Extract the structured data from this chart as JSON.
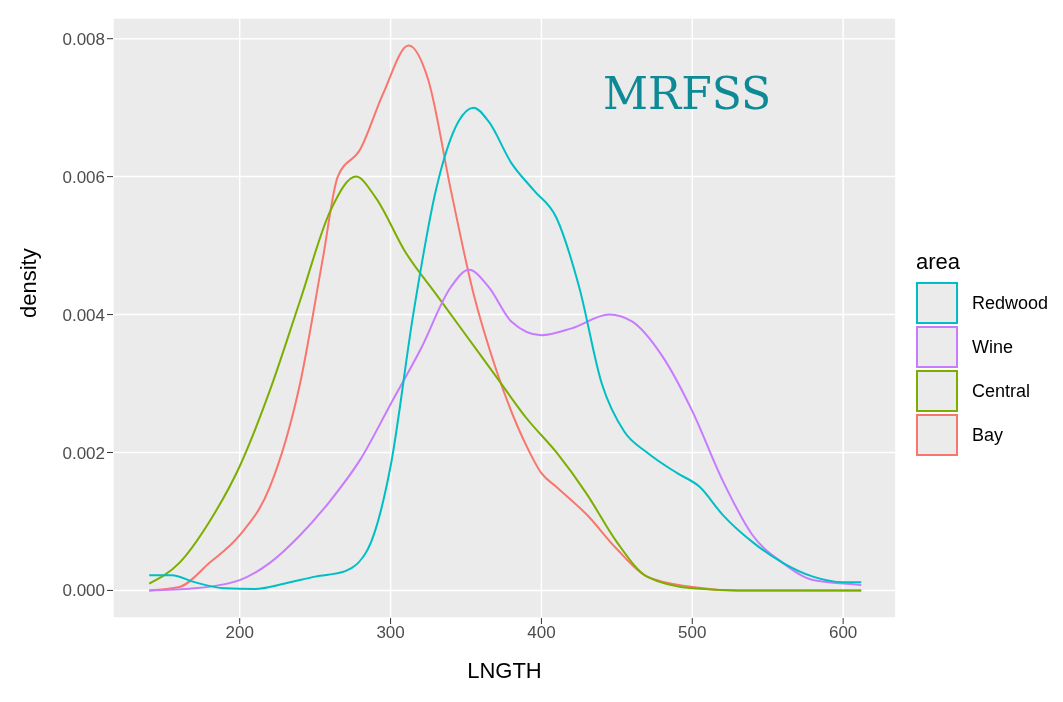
{
  "chart_data": {
    "type": "line",
    "xlabel": "LNGTH",
    "ylabel": "density",
    "legend_title": "area",
    "annotations": [
      "MRFSS"
    ],
    "xlim": [
      116,
      635
    ],
    "ylim": [
      -0.0004,
      0.0083
    ],
    "xticks": [
      200,
      300,
      400,
      500,
      600
    ],
    "yticks": [
      {
        "value": 0,
        "label": "0.000"
      },
      {
        "value": 0.002,
        "label": "0.002"
      },
      {
        "value": 0.004,
        "label": "0.004"
      },
      {
        "value": 0.006,
        "label": "0.006"
      },
      {
        "value": 0.008,
        "label": "0.008"
      }
    ],
    "grid": true,
    "legend": "right",
    "marker": "none",
    "line_style": "solid",
    "series": [
      {
        "name": "Redwood",
        "color": "#00bfc4",
        "x": [
          140,
          155,
          170,
          190,
          210,
          230,
          250,
          270,
          285,
          300,
          315,
          330,
          345,
          355,
          365,
          380,
          395,
          410,
          425,
          440,
          455,
          470,
          490,
          505,
          520,
          540,
          560,
          580,
          600,
          612
        ],
        "values": [
          0.00022,
          0.00022,
          0.00012,
          3e-05,
          2e-05,
          0.0001,
          0.0002,
          0.00028,
          0.0006,
          0.0018,
          0.004,
          0.0058,
          0.0068,
          0.007,
          0.0068,
          0.0062,
          0.0058,
          0.0054,
          0.0044,
          0.003,
          0.0023,
          0.002,
          0.0017,
          0.0015,
          0.0011,
          0.0007,
          0.0004,
          0.0002,
          0.00012,
          0.00012
        ]
      },
      {
        "name": "Wine",
        "color": "#c77cff",
        "x": [
          140,
          170,
          200,
          220,
          240,
          260,
          280,
          300,
          320,
          340,
          352,
          365,
          380,
          400,
          420,
          445,
          460,
          480,
          500,
          520,
          540,
          560,
          580,
          600,
          612
        ],
        "values": [
          0,
          3e-05,
          0.00015,
          0.0004,
          0.0008,
          0.0013,
          0.0019,
          0.0027,
          0.0035,
          0.0044,
          0.00465,
          0.0044,
          0.0039,
          0.0037,
          0.0038,
          0.004,
          0.0039,
          0.0034,
          0.0026,
          0.0016,
          0.0008,
          0.0004,
          0.00015,
          0.0001,
          8e-05
        ]
      },
      {
        "name": "Central",
        "color": "#7cae00",
        "x": [
          140,
          160,
          180,
          200,
          220,
          240,
          260,
          277,
          290,
          310,
          330,
          350,
          370,
          390,
          410,
          430,
          450,
          470,
          500,
          530,
          612
        ],
        "values": [
          0.0001,
          0.0004,
          0.001,
          0.0018,
          0.0029,
          0.0042,
          0.0055,
          0.006,
          0.0057,
          0.0049,
          0.0043,
          0.0037,
          0.0031,
          0.0025,
          0.002,
          0.0014,
          0.0007,
          0.0002,
          3e-05,
          0,
          0
        ]
      },
      {
        "name": "Bay",
        "color": "#f8766d",
        "x": [
          140,
          160,
          180,
          200,
          220,
          240,
          255,
          265,
          280,
          295,
          312,
          325,
          340,
          355,
          370,
          390,
          400,
          410,
          430,
          450,
          470,
          500,
          530,
          612
        ],
        "values": [
          0,
          5e-05,
          0.0004,
          0.0008,
          0.0015,
          0.003,
          0.0048,
          0.006,
          0.0064,
          0.0072,
          0.0079,
          0.0074,
          0.0058,
          0.0043,
          0.0032,
          0.0021,
          0.0017,
          0.0015,
          0.0011,
          0.0006,
          0.0002,
          5e-05,
          0,
          0
        ]
      }
    ]
  }
}
